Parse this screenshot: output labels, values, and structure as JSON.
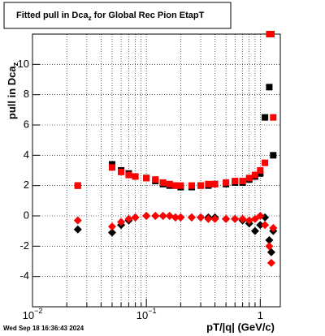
{
  "chart_data": {
    "type": "scatter",
    "title": {
      "text": "Fitted pull in Dca",
      "sub": "z",
      "rest": " for Global Rec Pion EtapT"
    },
    "y_label": {
      "text": "pull in Dca",
      "sub": "z"
    },
    "x_label": "pT/|q| (GeV/c)",
    "timestamp": "Wed Sep 18 16:36:43 2024",
    "log_x": true,
    "grid": true,
    "xlim": [
      0.01,
      1.5
    ],
    "xticks": [
      {
        "value": 0.01,
        "label": "10",
        "exponent": "−2"
      },
      {
        "value": 0.1,
        "label": "10",
        "exponent": "−1"
      },
      1
    ],
    "ylim": [
      -6,
      12
    ],
    "yticks": [
      -4,
      -2,
      0,
      2,
      4,
      6,
      8,
      10
    ],
    "x": [
      0.025,
      0.05,
      0.06,
      0.07,
      0.08,
      0.1,
      0.12,
      0.14,
      0.16,
      0.18,
      0.2,
      0.25,
      0.3,
      0.35,
      0.4,
      0.5,
      0.6,
      0.7,
      0.8,
      0.9,
      1.0,
      1.1,
      1.2,
      1.25,
      1.3
    ],
    "series": [
      {
        "marker": "square",
        "color": "#000000",
        "values": [
          2.0,
          3.4,
          3.0,
          2.8,
          2.6,
          2.5,
          2.3,
          2.1,
          2.0,
          2.0,
          1.9,
          1.9,
          2.0,
          2.0,
          2.1,
          2.1,
          2.2,
          2.2,
          2.4,
          2.6,
          2.8,
          6.5,
          8.5,
          12,
          4
        ]
      },
      {
        "marker": "square",
        "color": "#ff0000",
        "values": [
          2.0,
          3.2,
          2.9,
          2.7,
          2.6,
          2.5,
          2.4,
          2.2,
          2.1,
          2.0,
          2.0,
          2.0,
          2.0,
          2.1,
          2.1,
          2.2,
          2.3,
          2.3,
          2.5,
          2.7,
          3.0,
          3.5,
          12,
          12,
          6.5
        ]
      },
      {
        "marker": "diamond",
        "color": "#000000",
        "values": [
          -0.9,
          -1.1,
          -0.6,
          -0.3,
          -0.1,
          0,
          0,
          0,
          0,
          -0.1,
          -0.1,
          -0.1,
          -0.1,
          -0.1,
          -0.1,
          -0.2,
          -0.2,
          -0.3,
          -0.5,
          -1.0,
          -0.6,
          -0.1,
          -1.6,
          -2.4,
          -1.0
        ]
      },
      {
        "marker": "diamond",
        "color": "#ff0000",
        "values": [
          -0.3,
          -0.7,
          -0.4,
          -0.2,
          -0.1,
          0,
          0,
          0,
          0,
          -0.1,
          -0.1,
          -0.1,
          -0.1,
          -0.2,
          -0.2,
          -0.2,
          -0.2,
          -0.2,
          -0.3,
          -0.2,
          0,
          -0.6,
          -2.0,
          -3.1,
          -0.8
        ]
      }
    ]
  }
}
